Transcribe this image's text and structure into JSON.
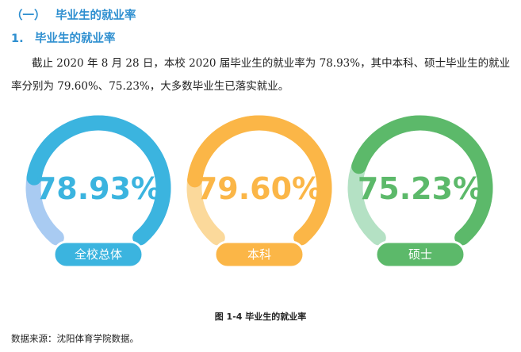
{
  "section": {
    "number": "（一）",
    "title": "毕业生的就业率"
  },
  "subsection": {
    "number": "1.",
    "title": "毕业生的就业率"
  },
  "paragraph": "截止 2020 年 8 月 28 日，本校 2020 届毕业生的就业率为 78.93%，其中本科、硕士毕业生的就业率分别为 79.60%、75.23%，大多数毕业生已落实就业。",
  "chart_data": {
    "type": "gauge",
    "items": [
      {
        "label": "全校总体",
        "value_text": "78.93%",
        "value": 78.93,
        "color": "#3bb4df",
        "track_color": "#a9cbf2"
      },
      {
        "label": "本科",
        "value_text": "79.60%",
        "value": 79.6,
        "color": "#fbb647",
        "track_color": "#fbd99b"
      },
      {
        "label": "硕士",
        "value_text": "75.23%",
        "value": 75.23,
        "color": "#5cb96a",
        "track_color": "#b4e1c4"
      }
    ]
  },
  "caption": "图 1-4 毕业生的就业率",
  "source": "数据来源：沈阳体育学院数据。"
}
